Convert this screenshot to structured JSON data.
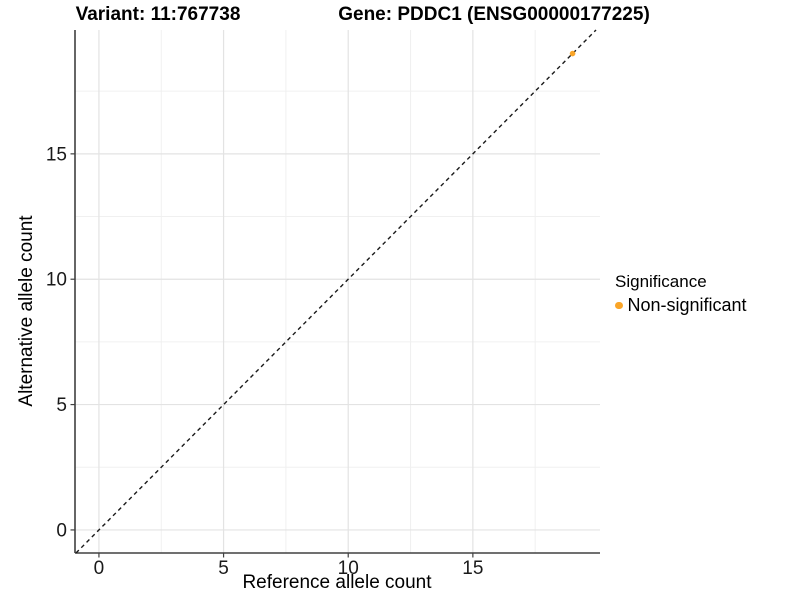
{
  "titles": {
    "variant": "Variant: 11:767738",
    "gene": "Gene: PDDC1 (ENSG00000177225)"
  },
  "chart_data": {
    "type": "scatter",
    "xlabel": "Reference allele count",
    "ylabel": "Alternative allele count",
    "xlim": [
      -0.96,
      20.1
    ],
    "ylim": [
      -0.92,
      19.94
    ],
    "x_ticks": [
      0,
      5,
      10,
      15
    ],
    "y_ticks": [
      0,
      5,
      10,
      15
    ],
    "x_minor_ticks": [
      2.5,
      7.5,
      12.5,
      17.5
    ],
    "y_minor_ticks": [
      2.5,
      7.5,
      12.5,
      17.5
    ],
    "grid": "major-and-minor, white background",
    "identity_line": {
      "style": "dashed",
      "equation": "y = x"
    },
    "points": [
      {
        "x": 19,
        "y": 19,
        "series": "Non-significant"
      }
    ],
    "legend": {
      "title": "Significance",
      "position": "right",
      "items": [
        {
          "label": "Non-significant",
          "color": "#FAA528"
        }
      ]
    }
  },
  "colors": {
    "point": "#FAA528",
    "axis_line": "#404040",
    "tick_label": "#1a1a1a",
    "grid_major": "#e3e3e3",
    "grid_minor": "#f0f0f0",
    "dashed_line": "#1a1a1a",
    "background": "#ffffff"
  }
}
